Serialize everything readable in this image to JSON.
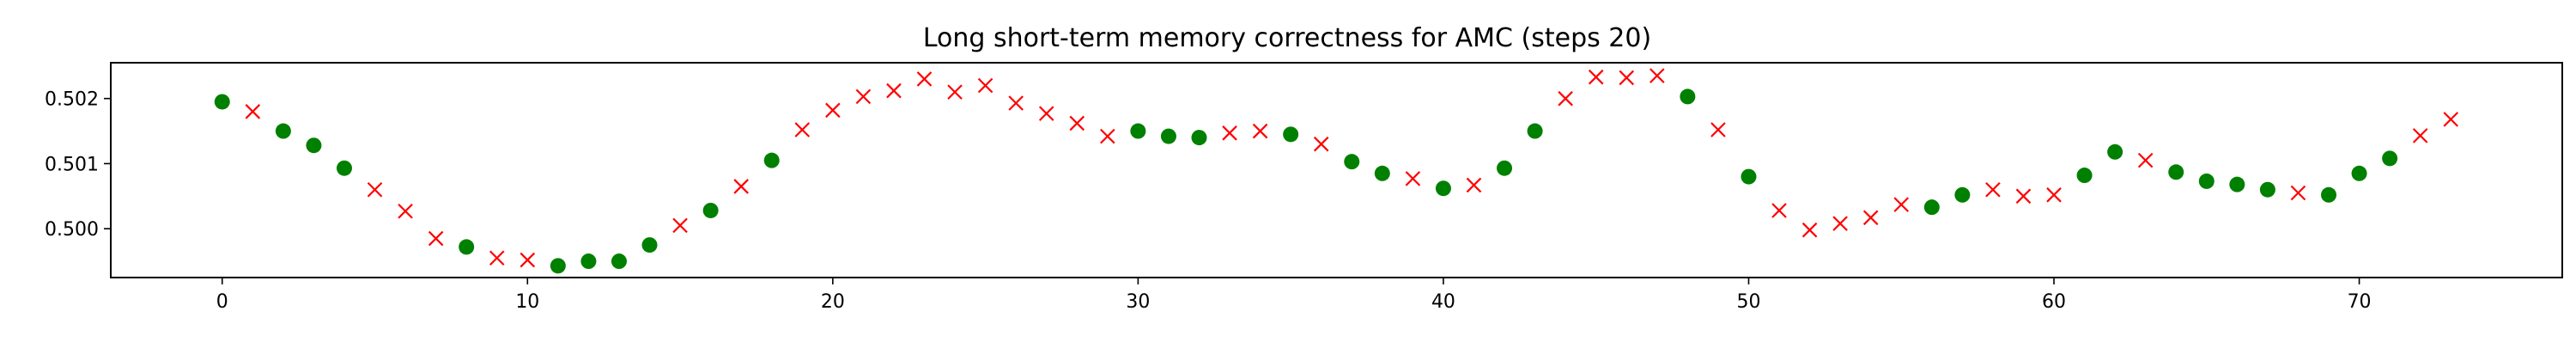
{
  "chart_data": {
    "type": "scatter",
    "title": "Long short-term memory correctness for AMC (steps 20)",
    "xlabel": "",
    "ylabel": "",
    "xlim": [
      -3.65,
      76.65
    ],
    "ylim": [
      0.49925,
      0.50255
    ],
    "x_ticks": [
      0,
      10,
      20,
      30,
      40,
      50,
      60,
      70
    ],
    "x_tick_labels": [
      "0",
      "10",
      "20",
      "30",
      "40",
      "50",
      "60",
      "70"
    ],
    "y_ticks": [
      0.5,
      0.501,
      0.502
    ],
    "y_tick_labels": [
      "0.500",
      "0.501",
      "0.502"
    ],
    "grid": false,
    "legend": "none",
    "colors": {
      "correct": "#008000",
      "incorrect": "#ff0000",
      "axes": "#000000"
    },
    "series": [
      {
        "marker": "circle",
        "color": "#008000",
        "points": [
          [
            0,
            0.50195
          ],
          [
            2,
            0.5015
          ],
          [
            3,
            0.50128
          ],
          [
            4,
            0.50093
          ],
          [
            8,
            0.49972
          ],
          [
            11,
            0.49943
          ],
          [
            12,
            0.4995
          ],
          [
            13,
            0.4995
          ],
          [
            14,
            0.49975
          ],
          [
            16,
            0.50028
          ],
          [
            18,
            0.50105
          ],
          [
            30,
            0.5015
          ],
          [
            31,
            0.50142
          ],
          [
            32,
            0.5014
          ],
          [
            35,
            0.50145
          ],
          [
            37,
            0.50103
          ],
          [
            38,
            0.50085
          ],
          [
            40,
            0.50062
          ],
          [
            42,
            0.50093
          ],
          [
            43,
            0.5015
          ],
          [
            48,
            0.50203
          ],
          [
            50,
            0.5008
          ],
          [
            56,
            0.50033
          ],
          [
            57,
            0.50052
          ],
          [
            61,
            0.50082
          ],
          [
            62,
            0.50118
          ],
          [
            64,
            0.50087
          ],
          [
            65,
            0.50073
          ],
          [
            66,
            0.50068
          ],
          [
            67,
            0.5006
          ],
          [
            69,
            0.50052
          ],
          [
            70,
            0.50085
          ],
          [
            71,
            0.50108
          ]
        ]
      },
      {
        "marker": "x",
        "color": "#ff0000",
        "points": [
          [
            1,
            0.5018
          ],
          [
            5,
            0.5006
          ],
          [
            6,
            0.50027
          ],
          [
            7,
            0.49985
          ],
          [
            9,
            0.49955
          ],
          [
            10,
            0.49952
          ],
          [
            15,
            0.50005
          ],
          [
            17,
            0.50065
          ],
          [
            19,
            0.50152
          ],
          [
            20,
            0.50182
          ],
          [
            21,
            0.50203
          ],
          [
            22,
            0.50212
          ],
          [
            23,
            0.5023
          ],
          [
            24,
            0.5021
          ],
          [
            25,
            0.5022
          ],
          [
            26,
            0.50193
          ],
          [
            27,
            0.50177
          ],
          [
            28,
            0.50162
          ],
          [
            29,
            0.50142
          ],
          [
            33,
            0.50147
          ],
          [
            34,
            0.5015
          ],
          [
            36,
            0.5013
          ],
          [
            39,
            0.50077
          ],
          [
            41,
            0.50067
          ],
          [
            44,
            0.502
          ],
          [
            45,
            0.50233
          ],
          [
            46,
            0.50232
          ],
          [
            47,
            0.50235
          ],
          [
            49,
            0.50152
          ],
          [
            51,
            0.50028
          ],
          [
            52,
            0.49998
          ],
          [
            53,
            0.50008
          ],
          [
            54,
            0.50017
          ],
          [
            55,
            0.50037
          ],
          [
            58,
            0.5006
          ],
          [
            59,
            0.5005
          ],
          [
            60,
            0.50052
          ],
          [
            63,
            0.50105
          ],
          [
            68,
            0.50055
          ],
          [
            72,
            0.50143
          ],
          [
            73,
            0.50168
          ]
        ]
      }
    ]
  }
}
